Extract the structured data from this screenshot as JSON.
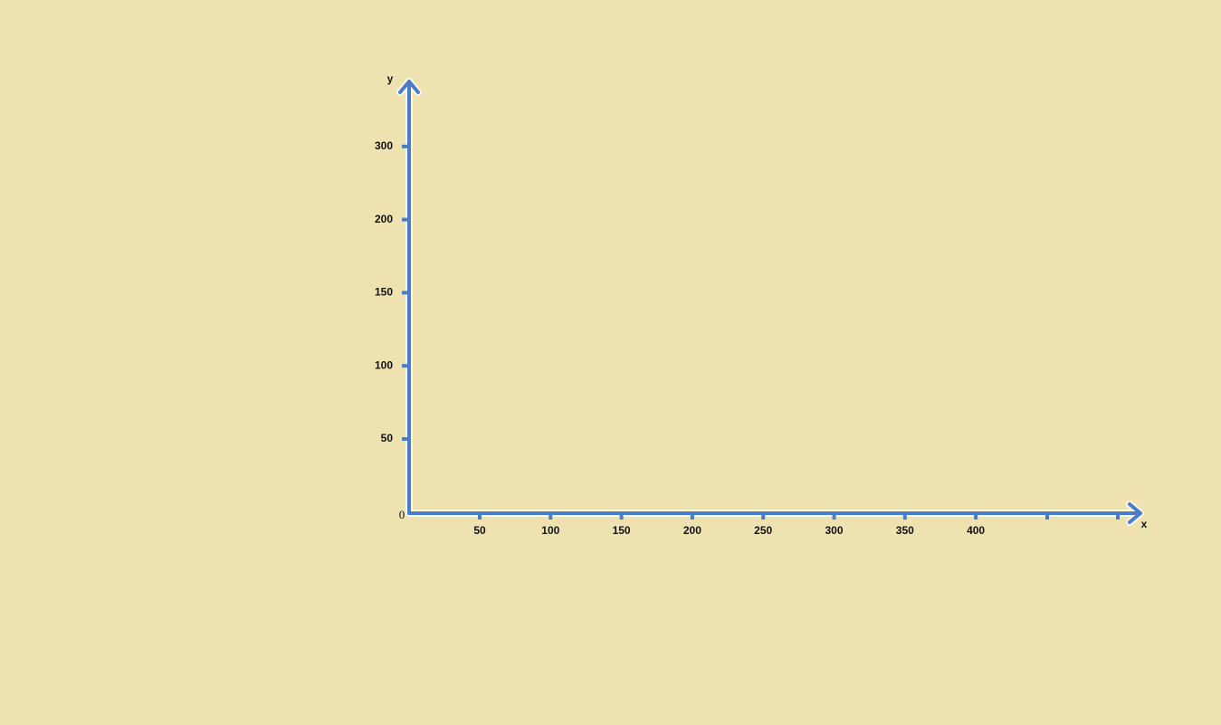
{
  "origin_label": "0",
  "x_axis": {
    "label": "x",
    "tick_labels": [
      "50",
      "100",
      "150",
      "200",
      "250",
      "300",
      "350",
      "400"
    ]
  },
  "y_axis": {
    "label": "y",
    "tick_labels": [
      "50",
      "100",
      "150",
      "200",
      "300"
    ]
  }
}
